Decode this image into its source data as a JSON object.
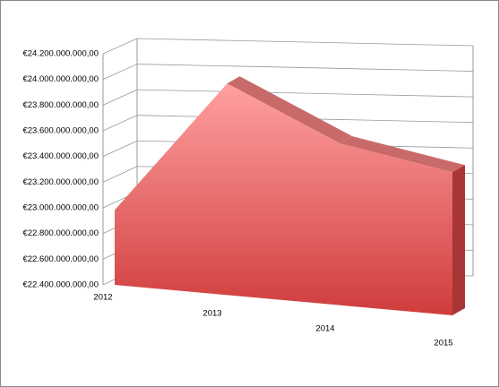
{
  "chart_data": {
    "type": "area3d",
    "categories": [
      "2012",
      "2013",
      "2014",
      "2015"
    ],
    "values": [
      23000000000,
      24100000000,
      23700000000,
      23550000000
    ],
    "color": "#e05555",
    "ylim": [
      22400000000,
      24200000000
    ],
    "yticks": [
      {
        "value": 22400000000,
        "label": "€22.400.000.000,00"
      },
      {
        "value": 22600000000,
        "label": "€22.600.000.000,00"
      },
      {
        "value": 22800000000,
        "label": "€22.800.000.000,00"
      },
      {
        "value": 23000000000,
        "label": "€23.000.000.000,00"
      },
      {
        "value": 23200000000,
        "label": "€23.200.000.000,00"
      },
      {
        "value": 23400000000,
        "label": "€23.400.000.000,00"
      },
      {
        "value": 23600000000,
        "label": "€23.600.000.000,00"
      },
      {
        "value": 23800000000,
        "label": "€23.800.000.000,00"
      },
      {
        "value": 24000000000,
        "label": "€24.000.000.000,00"
      },
      {
        "value": 24200000000,
        "label": "€24.200.000.000,00"
      }
    ],
    "grid": true
  }
}
